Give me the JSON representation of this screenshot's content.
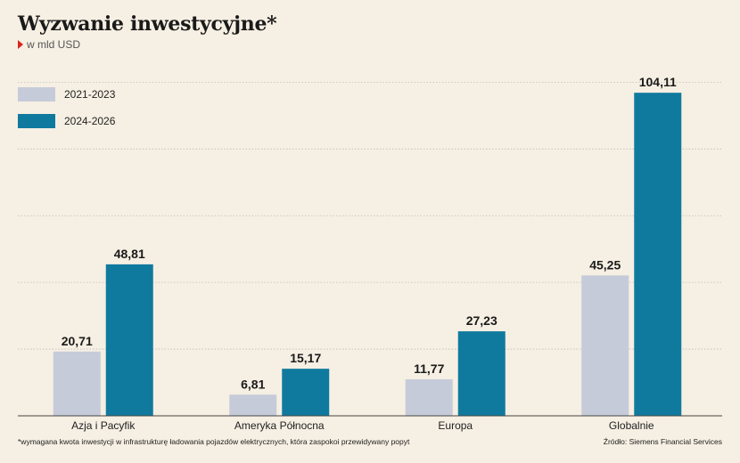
{
  "header": {
    "title": "Wyzwanie inwestycyjne*",
    "subtitle": "w mld USD"
  },
  "colors": {
    "series_2021_2023": "#c6cbd9",
    "series_2024_2026": "#0f7a9e",
    "accent": "#d9261c",
    "background": "#f6efe3",
    "grid": "#bdbdbd"
  },
  "chart_data": {
    "type": "bar",
    "categories": [
      "Azja i Pacyfik",
      "Ameryka Północna",
      "Europa",
      "Globalnie"
    ],
    "series": [
      {
        "name": "2021-2023",
        "values": [
          20.71,
          6.81,
          11.77,
          45.25
        ],
        "labels": [
          "20,71",
          "6,81",
          "11,77",
          "45,25"
        ]
      },
      {
        "name": "2024-2026",
        "values": [
          48.81,
          15.17,
          27.23,
          104.11
        ],
        "labels": [
          "48,81",
          "15,17",
          "27,23",
          "104,11"
        ]
      }
    ],
    "title": "Wyzwanie inwestycyjne*",
    "xlabel": "",
    "ylabel": "",
    "ylim": [
      0,
      120
    ],
    "grid": true,
    "legend": "top-left"
  },
  "footer": {
    "footnote": "*wymagana kwota inwestycji w infrastrukturę ładowania pojazdów elektrycznych, która zaspokoi przewidywany popyt",
    "source": "Źródło: Siemens Financial Services"
  }
}
